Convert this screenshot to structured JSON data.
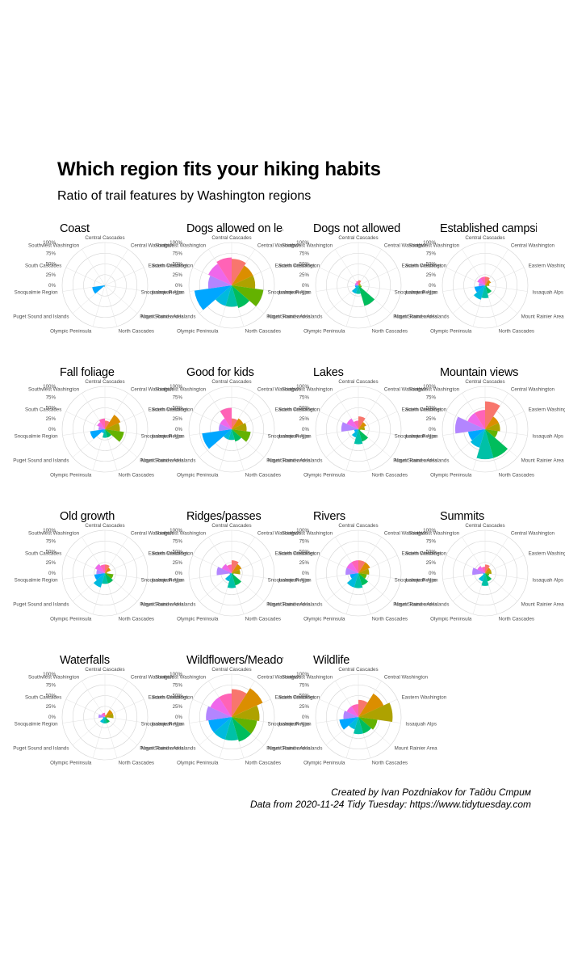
{
  "title": "Which region fits your hiking habits",
  "subtitle": "Ratio of trail features by Washington regions",
  "caption_line1": "Created by Ivan Pozdniakov for Тайди Стрим",
  "caption_line2": "Data from 2020-11-24 Tidy Tuesday: https://www.tidytuesday.com",
  "chart_data": {
    "type": "polar-bar",
    "categories": [
      "Central Cascades",
      "Central Washington",
      "Eastern Washington",
      "Issaquah Alps",
      "Mount Rainier Area",
      "North Cascades",
      "Olympic Peninsula",
      "Puget Sound and Islands",
      "Snoqualmie Region",
      "South Cascades",
      "Southwest Washington"
    ],
    "category_colors": [
      "#F8766D",
      "#DB8E00",
      "#AEA200",
      "#64B200",
      "#00BD5C",
      "#00C1A7",
      "#00BADE",
      "#00A6FF",
      "#B385FF",
      "#EF67EB",
      "#FF63B6"
    ],
    "radial_ticks": [
      "0%",
      "25%",
      "50%",
      "75%",
      "100%"
    ],
    "ylim": [
      0,
      1
    ],
    "facets": [
      {
        "title": "Coast",
        "values": [
          0,
          0,
          0,
          0,
          0,
          0,
          0.04,
          0.3,
          0,
          0,
          0
        ]
      },
      {
        "title": "Dogs allowed on leash",
        "values": [
          0.62,
          0.55,
          0.55,
          0.75,
          0.55,
          0.5,
          0.5,
          0.88,
          0.55,
          0.6,
          0.65
        ]
      },
      {
        "title": "Dogs not allowed",
        "values": [
          0.12,
          0.06,
          0.05,
          0.08,
          0.5,
          0.2,
          0.2,
          0.08,
          0.08,
          0.08,
          0.1
        ]
      },
      {
        "title": "Established campsites",
        "values": [
          0.2,
          0.15,
          0.1,
          0.05,
          0.2,
          0.3,
          0.35,
          0.25,
          0.15,
          0.2,
          0.2
        ]
      },
      {
        "title": "Fall foliage",
        "values": [
          0.2,
          0.4,
          0.35,
          0.45,
          0.2,
          0.2,
          0.1,
          0.35,
          0.15,
          0.2,
          0.25
        ]
      },
      {
        "title": "Good for kids",
        "values": [
          0.25,
          0.3,
          0.35,
          0.45,
          0.3,
          0.25,
          0.25,
          0.7,
          0.3,
          0.3,
          0.5
        ]
      },
      {
        "title": "Lakes",
        "values": [
          0.3,
          0.2,
          0.15,
          0.05,
          0.3,
          0.35,
          0.2,
          0.1,
          0.4,
          0.3,
          0.2
        ]
      },
      {
        "title": "Mountain views",
        "values": [
          0.65,
          0.35,
          0.35,
          0.3,
          0.7,
          0.7,
          0.45,
          0.4,
          0.7,
          0.45,
          0.45
        ]
      },
      {
        "title": "Old growth",
        "values": [
          0.2,
          0.15,
          0.05,
          0.2,
          0.25,
          0.25,
          0.35,
          0.25,
          0.2,
          0.25,
          0.2
        ]
      },
      {
        "title": "Ridges/passes",
        "values": [
          0.3,
          0.25,
          0.2,
          0.05,
          0.3,
          0.35,
          0.2,
          0.05,
          0.35,
          0.25,
          0.2
        ]
      },
      {
        "title": "Rivers",
        "values": [
          0.3,
          0.3,
          0.25,
          0.2,
          0.3,
          0.35,
          0.35,
          0.2,
          0.3,
          0.3,
          0.3
        ]
      },
      {
        "title": "Summits",
        "values": [
          0.2,
          0.15,
          0.15,
          0.1,
          0.2,
          0.3,
          0.2,
          0.05,
          0.3,
          0.2,
          0.15
        ]
      },
      {
        "title": "Waterfalls",
        "values": [
          0.05,
          0.2,
          0.2,
          0.05,
          0.15,
          0.15,
          0.15,
          0.05,
          0.15,
          0.1,
          0.1
        ]
      },
      {
        "title": "Wildflowers/Meadows",
        "values": [
          0.65,
          0.8,
          0.65,
          0.6,
          0.6,
          0.55,
          0.55,
          0.55,
          0.6,
          0.55,
          0.55
        ]
      },
      {
        "title": "Wildlife",
        "values": [
          0.4,
          0.65,
          0.8,
          0.45,
          0.4,
          0.4,
          0.3,
          0.45,
          0.35,
          0.3,
          0.3
        ]
      }
    ]
  }
}
